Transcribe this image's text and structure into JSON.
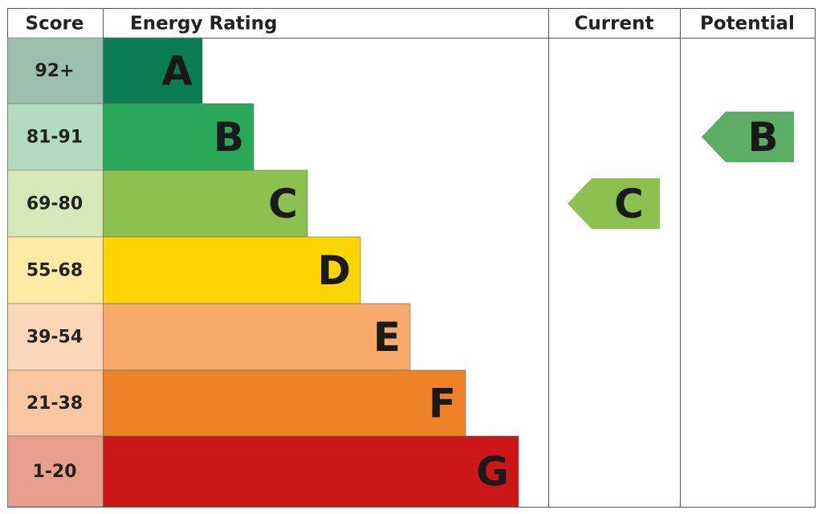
{
  "header": {
    "score": "Score",
    "rating": "Energy Rating",
    "current": "Current",
    "potential": "Potential"
  },
  "bands": [
    {
      "score": "92+",
      "letter": "A"
    },
    {
      "score": "81-91",
      "letter": "B"
    },
    {
      "score": "69-80",
      "letter": "C"
    },
    {
      "score": "55-68",
      "letter": "D"
    },
    {
      "score": "39-54",
      "letter": "E"
    },
    {
      "score": "21-38",
      "letter": "F"
    },
    {
      "score": "1-20",
      "letter": "G"
    }
  ],
  "current": "C",
  "potential": "B"
}
